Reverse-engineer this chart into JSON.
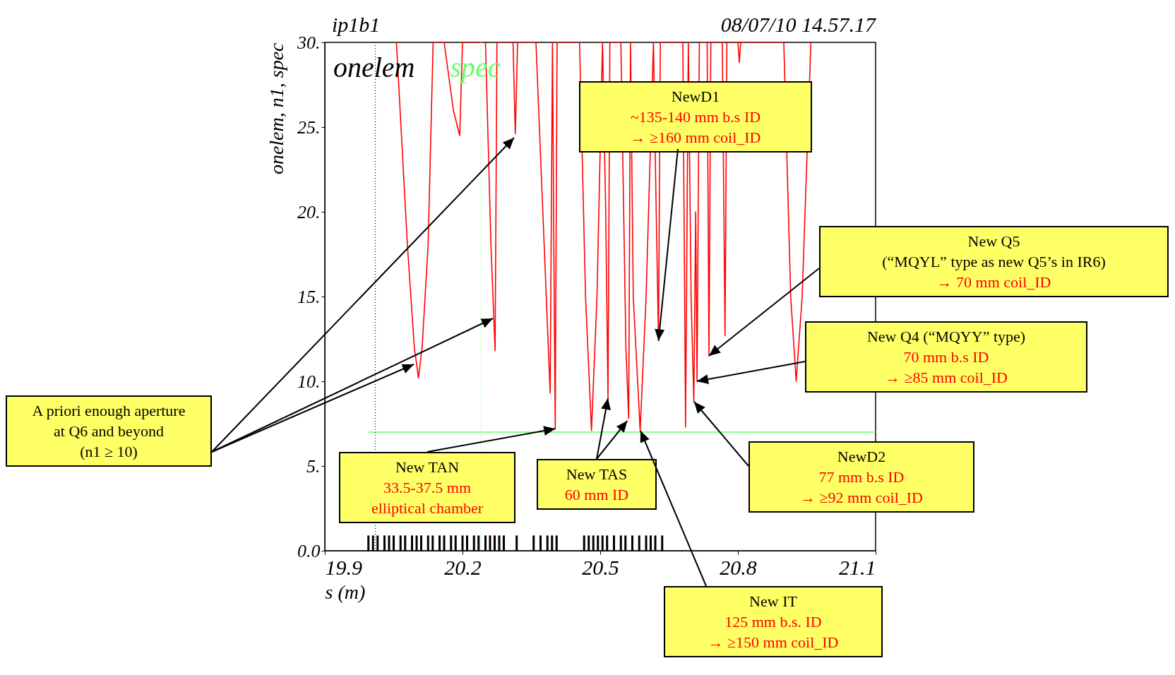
{
  "chart_data": {
    "type": "line",
    "title": "ip1b1",
    "subtitle": "08/07/10 14.57.17",
    "xlabel": "s (m)",
    "ylabel": "onelem, n1, spec",
    "xlim": [
      19.9,
      21.1
    ],
    "xticks": [
      19.9,
      20.2,
      20.5,
      20.8,
      21.1
    ],
    "ylim": [
      0,
      30
    ],
    "yticks": [
      {
        "value": 0,
        "label": "0.0"
      },
      {
        "value": 5,
        "label": "5."
      },
      {
        "value": 10,
        "label": "10."
      },
      {
        "value": 15,
        "label": "15."
      },
      {
        "value": 20,
        "label": "20."
      },
      {
        "value": 25,
        "label": "25."
      },
      {
        "value": 30,
        "label": "30."
      }
    ],
    "legend": "top left",
    "series": [
      {
        "color": "#ff0000",
        "x": [
          20.056,
          20.08,
          20.095,
          20.104,
          20.112,
          20.125,
          20.136,
          20.16,
          20.18,
          20.194,
          20.2,
          20.25,
          20.262,
          20.271,
          20.275,
          20.31,
          20.315,
          20.32,
          20.36,
          20.378,
          20.391,
          20.396,
          20.399,
          20.402,
          20.406,
          20.455,
          20.468,
          20.481,
          20.493,
          20.505,
          20.512,
          20.517,
          20.521,
          20.545,
          20.556,
          20.562,
          20.566,
          20.572,
          20.587,
          20.6,
          20.616,
          20.622,
          20.627,
          20.631,
          20.68,
          20.686,
          20.692,
          20.698,
          20.704,
          20.708,
          20.711,
          20.716,
          20.733,
          20.737,
          20.741,
          20.766,
          20.772,
          20.776,
          20.8,
          20.803,
          20.806,
          20.9,
          20.915,
          20.927,
          20.94,
          20.959
        ],
        "values": [
          30,
          18,
          12,
          10.2,
          12,
          18,
          30,
          30,
          26,
          24.5,
          30,
          30,
          18,
          11.8,
          30,
          30,
          24.6,
          30,
          30,
          18,
          9.3,
          30,
          18,
          7.2,
          30,
          30,
          15,
          7.1,
          15,
          30,
          20,
          9,
          30,
          30,
          12,
          7.8,
          30,
          15,
          7.1,
          15,
          30,
          20,
          12.4,
          30,
          30,
          7.3,
          30,
          15,
          8.8,
          20,
          10,
          30,
          30,
          11.5,
          30,
          30,
          12.7,
          30,
          30,
          28.8,
          30,
          30,
          15,
          10,
          15,
          30
        ]
      },
      {
        "name": "onelem",
        "type": "bar",
        "color": "#000000",
        "x": [
          19.995,
          20.005,
          20.015,
          20.03,
          20.04,
          20.05,
          20.065,
          20.075,
          20.09,
          20.1,
          20.11,
          20.125,
          20.135,
          20.15,
          20.16,
          20.175,
          20.185,
          20.2,
          20.21,
          20.225,
          20.235,
          20.25,
          20.26,
          20.27,
          20.28,
          20.29,
          20.318,
          20.355,
          20.37,
          20.385,
          20.395,
          20.405,
          20.465,
          20.475,
          20.485,
          20.495,
          20.505,
          20.515,
          20.53,
          20.545,
          20.555,
          20.57,
          20.585,
          20.6,
          20.61,
          20.62,
          20.635
        ],
        "values": [
          0.9,
          0.9,
          0.9,
          0.9,
          0.9,
          0.9,
          0.9,
          0.9,
          0.9,
          0.9,
          0.9,
          0.9,
          0.9,
          0.9,
          0.9,
          0.9,
          0.9,
          0.9,
          0.9,
          0.9,
          0.9,
          0.9,
          0.9,
          0.9,
          0.9,
          0.9,
          0.9,
          0.9,
          0.9,
          0.9,
          0.9,
          0.9,
          0.9,
          0.9,
          0.9,
          0.9,
          0.9,
          0.9,
          0.9,
          0.9,
          0.9,
          0.9,
          0.9,
          0.9,
          0.9,
          0.9,
          0.9
        ]
      },
      {
        "name": "spec",
        "type": "line",
        "color": "#66ff66",
        "x": [
          19.995,
          21.1
        ],
        "values": [
          7,
          7
        ]
      }
    ],
    "ref_lines": [
      {
        "axis": "x",
        "value": 20.01,
        "color": "#000000",
        "line_style": "dotted"
      },
      {
        "axis": "x",
        "value": 20.24,
        "color": "#66ff66",
        "line_style": "dotted"
      }
    ],
    "annotations": [
      "A priori enough aperture\nat Q6 and beyond\n(n1 ≥ 10)",
      {
        "text": "NewD1\n~135-140 mm b.s ID\n→  ≥160 mm coil_ID",
        "x": 20.627,
        "y": 12.4
      },
      "New Q5\n(“MQYL” type as new Q5’s in IR6)\n→ 70 mm coil_ID",
      "New Q4 (“MQYY” type)\n70 mm b.s ID\n→ ≥85 mm coil_ID",
      "NewD2\n77 mm b.s ID\n→ ≥92 mm coil_ID",
      "New IT\n125 mm b.s. ID\n→ ≥150 mm coil_ID",
      {
        "text": "New TAS\n60 mm ID",
        "x": 20.559,
        "y": 7.67
      },
      {
        "text": "New TAN\n33.5-37.5 mm\nelliptical chamber",
        "x": 20.402,
        "y": 7.2
      }
    ]
  }
}
